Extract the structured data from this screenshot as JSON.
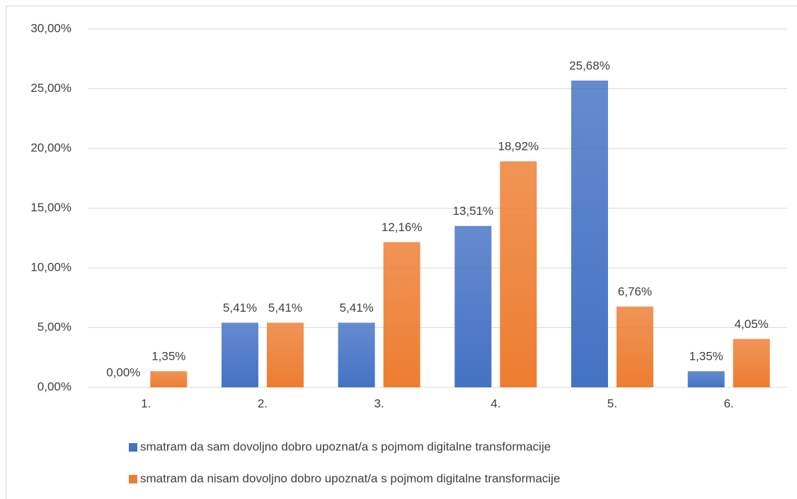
{
  "chart_data": {
    "type": "bar",
    "categories": [
      "1.",
      "2.",
      "3.",
      "4.",
      "5.",
      "6."
    ],
    "series": [
      {
        "name": "smatram da sam dovoljno dobro upoznat/a s pojmom digitalne transformacije",
        "color": "#4472c4",
        "values": [
          0,
          5.41,
          5.41,
          13.51,
          25.68,
          1.35
        ],
        "value_labels": [
          "0,00%",
          "5,41%",
          "5,41%",
          "13,51%",
          "25,68%",
          "1,35%"
        ]
      },
      {
        "name": "smatram da nisam dovoljno dobro upoznat/a s pojmom digitalne transformacije",
        "color": "#ed7d31",
        "values": [
          1.35,
          5.41,
          12.16,
          18.92,
          6.76,
          4.05
        ],
        "value_labels": [
          "1,35%",
          "5,41%",
          "12,16%",
          "18,92%",
          "6,76%",
          "4,05%"
        ]
      }
    ],
    "ylim": [
      0,
      30
    ],
    "yticks": [
      {
        "value": 0,
        "label": "0,00%"
      },
      {
        "value": 5,
        "label": "5,00%"
      },
      {
        "value": 10,
        "label": "10,00%"
      },
      {
        "value": 15,
        "label": "15,00%"
      },
      {
        "value": 20,
        "label": "20,00%"
      },
      {
        "value": 25,
        "label": "25,00%"
      },
      {
        "value": 30,
        "label": "30,00%"
      }
    ],
    "grid": true
  }
}
